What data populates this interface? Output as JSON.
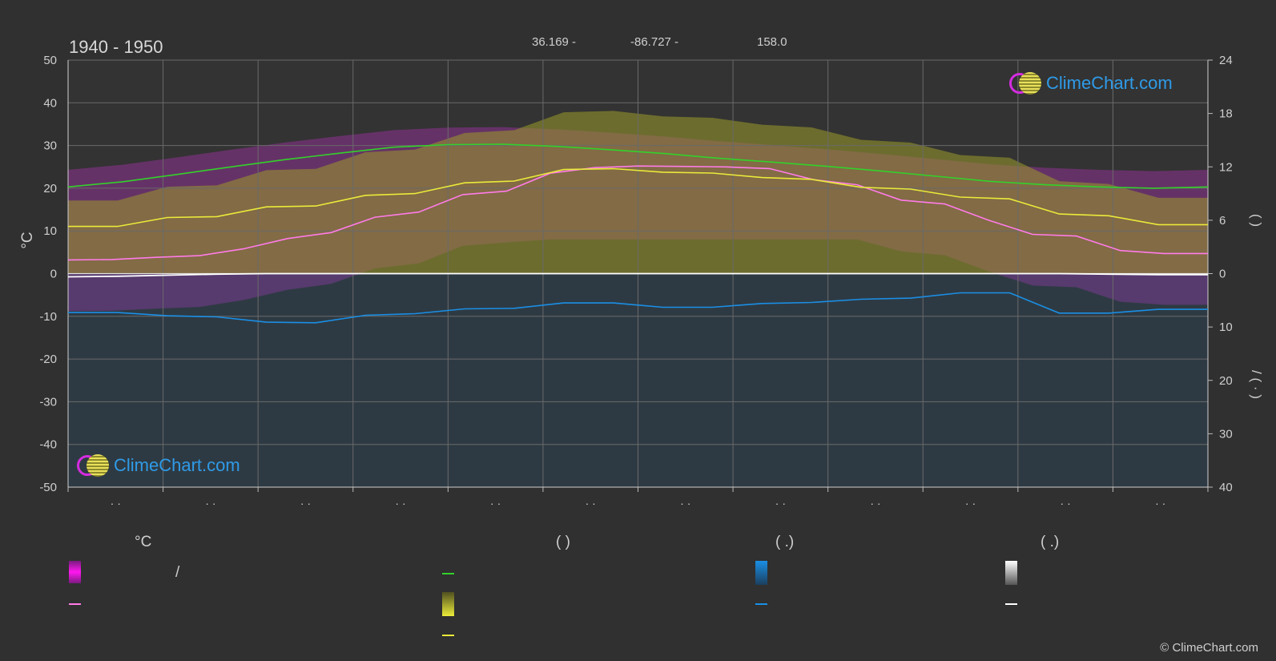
{
  "title": "1940 - 1950",
  "coords": {
    "lat": "36.169 -",
    "lon": "-86.727 -",
    "elev": "158.0"
  },
  "logo_text": "ClimeChart.com",
  "copyright": "© ClimeChart.com",
  "legend": {
    "col1_header": "°C",
    "col1_slash": "/",
    "col2_header": "(          )",
    "col3_header": "(    .)",
    "col4_header": "(    .)"
  },
  "colors": {
    "background": "#303030",
    "max_temp_line": "#33d12a",
    "mean_temp_line": "#ff7be8",
    "sunshine_line": "#eaea3a",
    "rain_line": "#1a8fe6",
    "snow_line": "#ffffff",
    "temp_band": "#c230c8",
    "sunshine_band": "#9a9a2a",
    "rain_band": "#1e5f8e"
  },
  "chart_data": {
    "type": "line",
    "x_tick_labels": [
      "· ·",
      "· ·",
      "· ·",
      "· ·",
      "· ·",
      "· ·",
      "· ·",
      "· ·",
      "· ·",
      "· ·",
      "· ·",
      "· ·"
    ],
    "y_left": {
      "label": "°C",
      "ticks": [
        50,
        40,
        30,
        20,
        10,
        0,
        -10,
        -20,
        -30,
        -40,
        -50
      ],
      "range": [
        -50,
        50
      ]
    },
    "y_right_top": {
      "ticks": [
        24,
        18,
        12,
        6,
        0
      ],
      "range": [
        0,
        24
      ],
      "label": "(   )"
    },
    "y_right_bottom": {
      "ticks": [
        0,
        10,
        20,
        30,
        40
      ],
      "range": [
        0,
        40
      ],
      "label": "/   (   ·   )"
    },
    "series": [
      {
        "key": "max",
        "axis": "temp",
        "values": [
          20.3,
          21.5,
          23.2,
          25.0,
          26.7,
          28.2,
          29.6,
          30.2,
          30.3,
          29.8,
          29.0,
          28.1,
          27.0,
          26.1,
          25.1,
          24.0,
          22.8,
          21.6,
          20.8,
          20.3,
          20.0,
          20.3
        ]
      },
      {
        "key": "mean",
        "axis": "temp",
        "values": [
          3.2,
          3.3,
          3.8,
          4.2,
          5.8,
          8.2,
          9.6,
          13.2,
          14.4,
          18.5,
          19.3,
          23.5,
          24.8,
          25.2,
          25.1,
          25.0,
          24.6,
          22.0,
          20.8,
          17.2,
          16.3,
          12.5,
          9.2,
          8.8,
          5.4,
          4.7,
          4.7
        ]
      },
      {
        "key": "sunshine",
        "axis": "sun_hours",
        "values": [
          5.3,
          5.3,
          6.3,
          6.4,
          7.5,
          7.6,
          8.8,
          9.0,
          10.2,
          10.4,
          11.7,
          11.8,
          11.4,
          11.3,
          10.8,
          10.6,
          9.7,
          9.5,
          8.6,
          8.4,
          6.7,
          6.5,
          5.5,
          5.5
        ]
      },
      {
        "key": "rain",
        "axis": "precip",
        "values": [
          7.3,
          7.3,
          7.9,
          8.1,
          9.1,
          9.2,
          7.8,
          7.5,
          6.6,
          6.5,
          5.5,
          5.5,
          6.3,
          6.3,
          5.6,
          5.4,
          4.8,
          4.6,
          3.6,
          3.6,
          7.4,
          7.4,
          6.7,
          6.7
        ]
      },
      {
        "key": "snow",
        "axis": "precip",
        "values": [
          0.6,
          0.5,
          0.3,
          0.1,
          0,
          0,
          0,
          0,
          0,
          0,
          0,
          0,
          0,
          0,
          0,
          0,
          0,
          0,
          0,
          0,
          0,
          0.1,
          0.2,
          0.2
        ]
      }
    ]
  }
}
